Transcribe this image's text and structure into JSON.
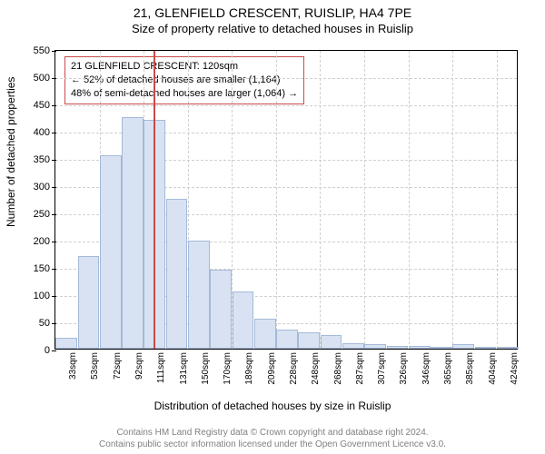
{
  "title": "21, GLENFIELD CRESCENT, RUISLIP, HA4 7PE",
  "subtitle": "Size of property relative to detached houses in Ruislip",
  "ylabel": "Number of detached properties",
  "xlabel": "Distribution of detached houses by size in Ruislip",
  "footer_line1": "Contains HM Land Registry data © Crown copyright and database right 2024.",
  "footer_line2": "Contains public sector information licensed under the Open Government Licence v3.0.",
  "chart": {
    "type": "histogram",
    "background_color": "#ffffff",
    "bar_fill": "#d8e2f2",
    "bar_border": "#a5b9d8",
    "grid_color": "#d0d0d0",
    "axis_color": "#000000",
    "marker_color": "#c94a4a",
    "ylim": [
      0,
      550
    ],
    "ytick_step": 50,
    "yticks": [
      0,
      50,
      100,
      150,
      200,
      250,
      300,
      350,
      400,
      450,
      500,
      550
    ],
    "xticks": [
      "33sqm",
      "53sqm",
      "72sqm",
      "92sqm",
      "111sqm",
      "131sqm",
      "150sqm",
      "170sqm",
      "189sqm",
      "209sqm",
      "228sqm",
      "248sqm",
      "268sqm",
      "287sqm",
      "307sqm",
      "326sqm",
      "346sqm",
      "365sqm",
      "385sqm",
      "404sqm",
      "424sqm"
    ],
    "bars": [
      20,
      170,
      355,
      425,
      420,
      275,
      198,
      145,
      105,
      55,
      35,
      30,
      25,
      10,
      8,
      5,
      5,
      3,
      8,
      3,
      2
    ],
    "marker_bin_index": 4,
    "marker_value_sqm": 120,
    "tick_fontsize": 11,
    "label_fontsize": 12
  },
  "annotation": {
    "line1": "21 GLENFIELD CRESCENT: 120sqm",
    "line2": "← 52% of detached houses are smaller (1,164)",
    "line3": "48% of semi-detached houses are larger (1,064) →",
    "border_color": "#c94a4a",
    "fontsize": 11
  }
}
